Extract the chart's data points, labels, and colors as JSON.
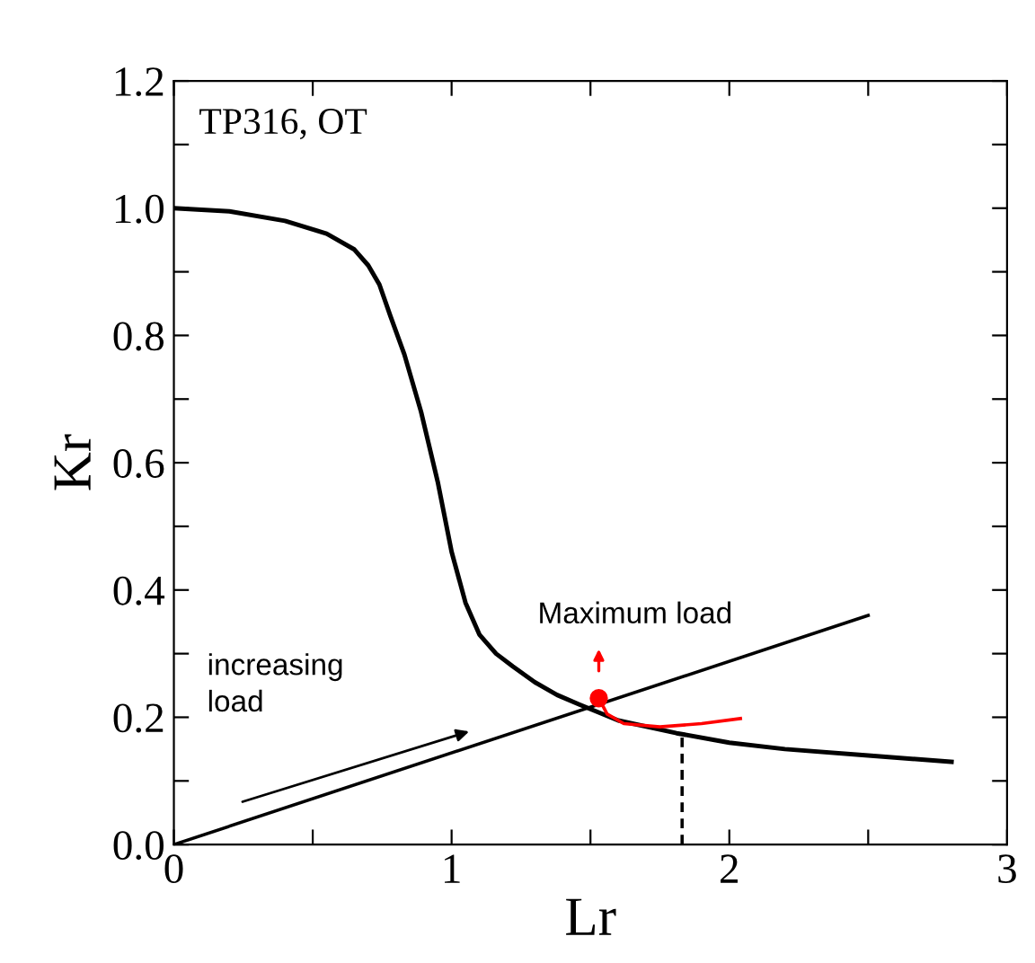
{
  "chart_data": {
    "type": "line",
    "xlabel": "Lr",
    "ylabel": "Kr",
    "xlim": [
      0,
      3
    ],
    "ylim": [
      0,
      1.2
    ],
    "xticks": [
      0,
      {
        "value": 0.5,
        "label": null
      },
      1,
      {
        "value": 1.5,
        "label": null
      },
      2,
      {
        "value": 2.5,
        "label": null
      },
      3
    ],
    "yticks": [
      {
        "value": 0,
        "label": "0.0"
      },
      {
        "value": 0.1,
        "label": null
      },
      0.2,
      {
        "value": 0.3,
        "label": null
      },
      0.4,
      {
        "value": 0.5,
        "label": null
      },
      0.6,
      {
        "value": 0.7,
        "label": null
      },
      0.8,
      {
        "value": 0.9,
        "label": null
      },
      {
        "value": 1.0,
        "label": "1.0"
      },
      {
        "value": 1.1,
        "label": null
      },
      1.2
    ],
    "grid": false,
    "legend": false,
    "series": [
      {
        "color": "#000000",
        "x": [
          0,
          0.2,
          0.4,
          0.55,
          0.65,
          0.7,
          0.74,
          0.78,
          0.83,
          0.89,
          0.95,
          1.0,
          1.05,
          1.1,
          1.16,
          1.22,
          1.3,
          1.38,
          1.46,
          1.6,
          1.81,
          2.0,
          2.2,
          2.5,
          2.8
        ],
        "values": [
          1.0,
          0.995,
          0.98,
          0.96,
          0.935,
          0.91,
          0.88,
          0.83,
          0.77,
          0.68,
          0.57,
          0.46,
          0.38,
          0.33,
          0.3,
          0.28,
          0.255,
          0.235,
          0.22,
          0.195,
          0.175,
          0.16,
          0.15,
          0.14,
          0.13
        ]
      },
      {
        "color": "#000000",
        "x": [
          0,
          2.5
        ],
        "values": [
          0,
          0.36
        ]
      },
      {
        "color": "#ff0000",
        "x": [
          1.53,
          1.56,
          1.62,
          1.75,
          1.9,
          2.04
        ],
        "values": [
          0.23,
          0.205,
          0.19,
          0.185,
          0.19,
          0.198
        ]
      },
      {
        "type": "scatter",
        "marker": "circle",
        "color": "#ff0000",
        "x": [
          1.53
        ],
        "values": [
          0.23
        ]
      },
      {
        "color": "#000000",
        "line_style": "dashed",
        "x": [
          1.83,
          1.83
        ],
        "values": [
          0,
          0.175
        ]
      }
    ],
    "annotations": [
      "TP316, OT",
      {
        "text": "Maximum load",
        "x": 1.53,
        "y": 0.23
      },
      "increasing\nload"
    ]
  }
}
